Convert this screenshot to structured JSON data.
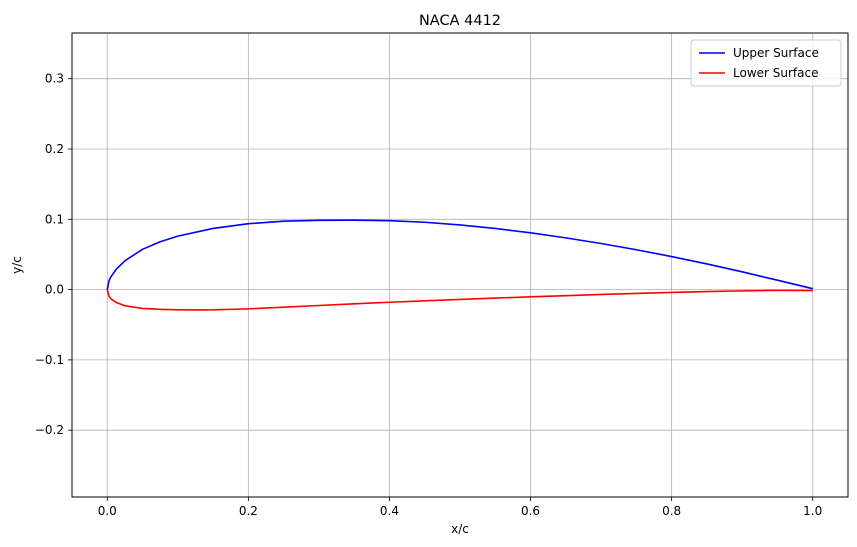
{
  "chart_data": {
    "type": "line",
    "title": "NACA 4412",
    "xlabel": "x/c",
    "ylabel": "y/c",
    "xlim": [
      -0.05,
      1.05
    ],
    "ylim": [
      -0.295,
      0.365
    ],
    "x_ticks": [
      {
        "value": 0.0,
        "label": "0.0"
      },
      {
        "value": 0.2,
        "label": "0.2"
      },
      {
        "value": 0.4,
        "label": "0.4"
      },
      {
        "value": 0.6,
        "label": "0.6"
      },
      {
        "value": 0.8,
        "label": "0.8"
      },
      {
        "value": 1.0,
        "label": "1.0"
      }
    ],
    "y_ticks": [
      {
        "value": -0.2,
        "label": "−0.2"
      },
      {
        "value": -0.1,
        "label": "−0.1"
      },
      {
        "value": 0.0,
        "label": "0.0"
      },
      {
        "value": 0.1,
        "label": "0.1"
      },
      {
        "value": 0.2,
        "label": "0.2"
      },
      {
        "value": 0.3,
        "label": "0.3"
      }
    ],
    "grid": true,
    "legend_position": "upper-right",
    "series": [
      {
        "name": "Upper Surface",
        "color": "#0000ff",
        "x": [
          0.0,
          0.0025,
          0.005,
          0.0125,
          0.025,
          0.05,
          0.075,
          0.1,
          0.15,
          0.2,
          0.25,
          0.3,
          0.35,
          0.4,
          0.45,
          0.5,
          0.55,
          0.6,
          0.65,
          0.7,
          0.75,
          0.8,
          0.85,
          0.9,
          0.95,
          1.0
        ],
        "y": [
          0.0,
          0.0125,
          0.0178,
          0.0287,
          0.041,
          0.0573,
          0.0681,
          0.0761,
          0.087,
          0.0937,
          0.0973,
          0.0986,
          0.0988,
          0.0981,
          0.0958,
          0.092,
          0.087,
          0.0808,
          0.0736,
          0.0656,
          0.0567,
          0.047,
          0.0365,
          0.0253,
          0.0134,
          0.0013
        ]
      },
      {
        "name": "Lower Surface",
        "color": "#ff0000",
        "x": [
          0.0,
          0.0025,
          0.005,
          0.0125,
          0.025,
          0.05,
          0.075,
          0.1,
          0.13,
          0.15,
          0.2,
          0.25,
          0.3,
          0.35,
          0.4,
          0.45,
          0.5,
          0.55,
          0.6,
          0.65,
          0.7,
          0.75,
          0.8,
          0.85,
          0.9,
          0.95,
          1.0
        ],
        "y": [
          0.0,
          -0.0094,
          -0.0129,
          -0.0182,
          -0.0229,
          -0.0268,
          -0.0281,
          -0.0287,
          -0.0289,
          -0.0288,
          -0.0274,
          -0.025,
          -0.0226,
          -0.0202,
          -0.018,
          -0.0159,
          -0.014,
          -0.0121,
          -0.0103,
          -0.0086,
          -0.0069,
          -0.0054,
          -0.004,
          -0.0028,
          -0.0018,
          -0.001,
          -0.0013
        ]
      }
    ]
  }
}
